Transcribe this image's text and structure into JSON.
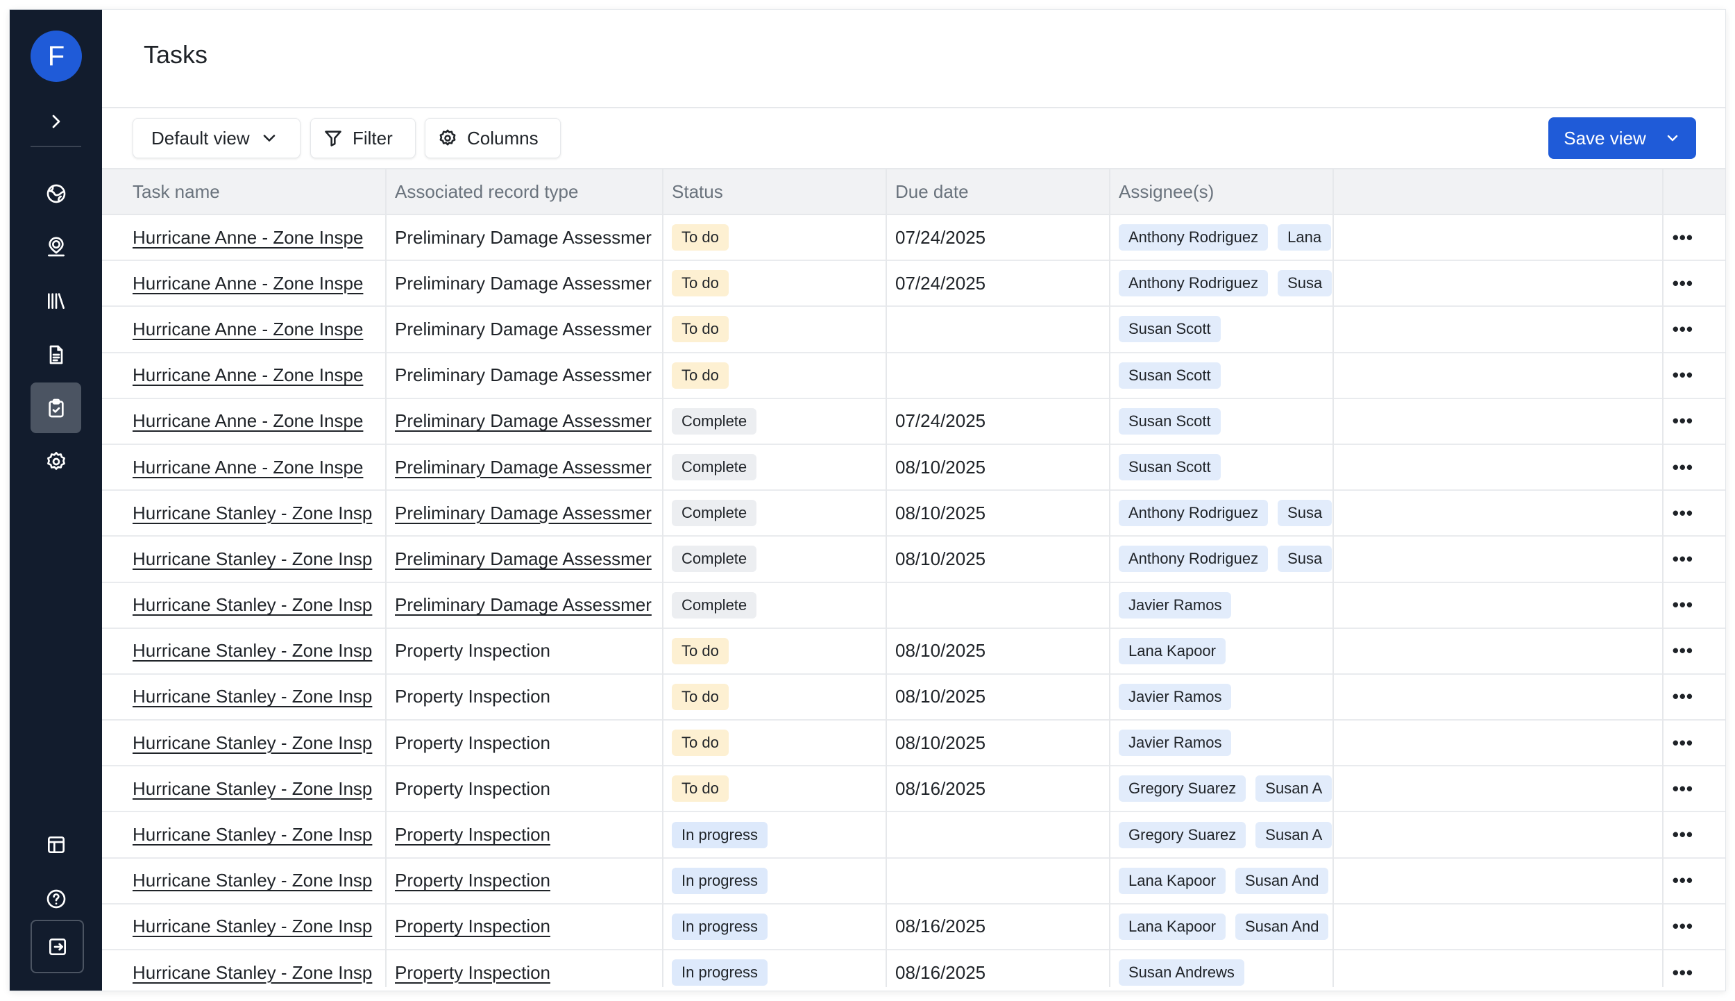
{
  "app": {
    "user_initial": "F",
    "page_title": "Tasks"
  },
  "sidebar": {
    "top_icons": [
      "chevron-right-icon",
      "globe-icon",
      "user-location-icon",
      "library-icon",
      "document-icon",
      "clipboard-check-icon",
      "gear-icon"
    ],
    "bottom_icons": [
      "layout-icon",
      "help-icon",
      "logout-icon"
    ],
    "active_item": "clipboard-check-icon"
  },
  "toolbar": {
    "view_label": "Default view",
    "filter_label": "Filter",
    "columns_label": "Columns",
    "save_label": "Save view"
  },
  "table": {
    "columns": [
      "Task name",
      "Associated record type",
      "Status",
      "Due date",
      "Assignee(s)"
    ],
    "rows": [
      {
        "task": "Hurricane Anne - Zone Inspe",
        "record_type": "Preliminary Damage Assessmer",
        "record_linked": false,
        "status": "To do",
        "due": "07/24/2025",
        "assignees": [
          "Anthony Rodriguez",
          "Lana"
        ]
      },
      {
        "task": "Hurricane Anne - Zone Inspe",
        "record_type": "Preliminary Damage Assessmer",
        "record_linked": false,
        "status": "To do",
        "due": "07/24/2025",
        "assignees": [
          "Anthony Rodriguez",
          "Susa"
        ]
      },
      {
        "task": "Hurricane Anne - Zone Inspe",
        "record_type": "Preliminary Damage Assessmer",
        "record_linked": false,
        "status": "To do",
        "due": "",
        "assignees": [
          "Susan Scott"
        ]
      },
      {
        "task": "Hurricane Anne - Zone Inspe",
        "record_type": "Preliminary Damage Assessmer",
        "record_linked": false,
        "status": "To do",
        "due": "",
        "assignees": [
          "Susan Scott"
        ]
      },
      {
        "task": "Hurricane Anne - Zone Inspe",
        "record_type": "Preliminary Damage Assessmer",
        "record_linked": true,
        "status": "Complete",
        "due": "07/24/2025",
        "assignees": [
          "Susan Scott"
        ]
      },
      {
        "task": "Hurricane Anne - Zone Inspe",
        "record_type": "Preliminary Damage Assessmer",
        "record_linked": true,
        "status": "Complete",
        "due": "08/10/2025",
        "assignees": [
          "Susan Scott"
        ]
      },
      {
        "task": "Hurricane Stanley - Zone Insp",
        "record_type": "Preliminary Damage Assessmer",
        "record_linked": true,
        "status": "Complete",
        "due": "08/10/2025",
        "assignees": [
          "Anthony Rodriguez",
          "Susa"
        ]
      },
      {
        "task": "Hurricane Stanley - Zone Insp",
        "record_type": "Preliminary Damage Assessmer",
        "record_linked": true,
        "status": "Complete",
        "due": "08/10/2025",
        "assignees": [
          "Anthony Rodriguez",
          "Susa"
        ]
      },
      {
        "task": "Hurricane Stanley - Zone Insp",
        "record_type": "Preliminary Damage Assessmer",
        "record_linked": true,
        "status": "Complete",
        "due": "",
        "assignees": [
          "Javier Ramos"
        ]
      },
      {
        "task": "Hurricane Stanley - Zone Insp",
        "record_type": "Property Inspection",
        "record_linked": false,
        "status": "To do",
        "due": "08/10/2025",
        "assignees": [
          "Lana Kapoor"
        ]
      },
      {
        "task": "Hurricane Stanley - Zone Insp",
        "record_type": "Property Inspection",
        "record_linked": false,
        "status": "To do",
        "due": "08/10/2025",
        "assignees": [
          "Javier Ramos"
        ]
      },
      {
        "task": "Hurricane Stanley - Zone Insp",
        "record_type": "Property Inspection",
        "record_linked": false,
        "status": "To do",
        "due": "08/10/2025",
        "assignees": [
          "Javier Ramos"
        ]
      },
      {
        "task": "Hurricane Stanley - Zone Insp",
        "record_type": "Property Inspection",
        "record_linked": false,
        "status": "To do",
        "due": "08/16/2025",
        "assignees": [
          "Gregory Suarez",
          "Susan A"
        ]
      },
      {
        "task": "Hurricane Stanley - Zone Insp",
        "record_type": "Property Inspection",
        "record_linked": true,
        "status": "In progress",
        "due": "",
        "assignees": [
          "Gregory Suarez",
          "Susan A"
        ]
      },
      {
        "task": "Hurricane Stanley - Zone Insp",
        "record_type": "Property Inspection",
        "record_linked": true,
        "status": "In progress",
        "due": "",
        "assignees": [
          "Lana Kapoor",
          "Susan And"
        ]
      },
      {
        "task": "Hurricane Stanley - Zone Insp",
        "record_type": "Property Inspection",
        "record_linked": true,
        "status": "In progress",
        "due": "08/16/2025",
        "assignees": [
          "Lana Kapoor",
          "Susan And"
        ]
      },
      {
        "task": "Hurricane Stanley - Zone Insp",
        "record_type": "Property Inspection",
        "record_linked": true,
        "status": "In progress",
        "due": "08/16/2025",
        "assignees": [
          "Susan Andrews"
        ]
      }
    ],
    "row_action_glyph": "•••"
  },
  "colors": {
    "sidebar_bg": "#121c2d",
    "accent": "#1f5bd8",
    "status_todo": "#fdf0d2",
    "status_complete": "#eceef1",
    "status_in_progress": "#dde9fb",
    "assignee_chip": "#e2ecfb"
  }
}
